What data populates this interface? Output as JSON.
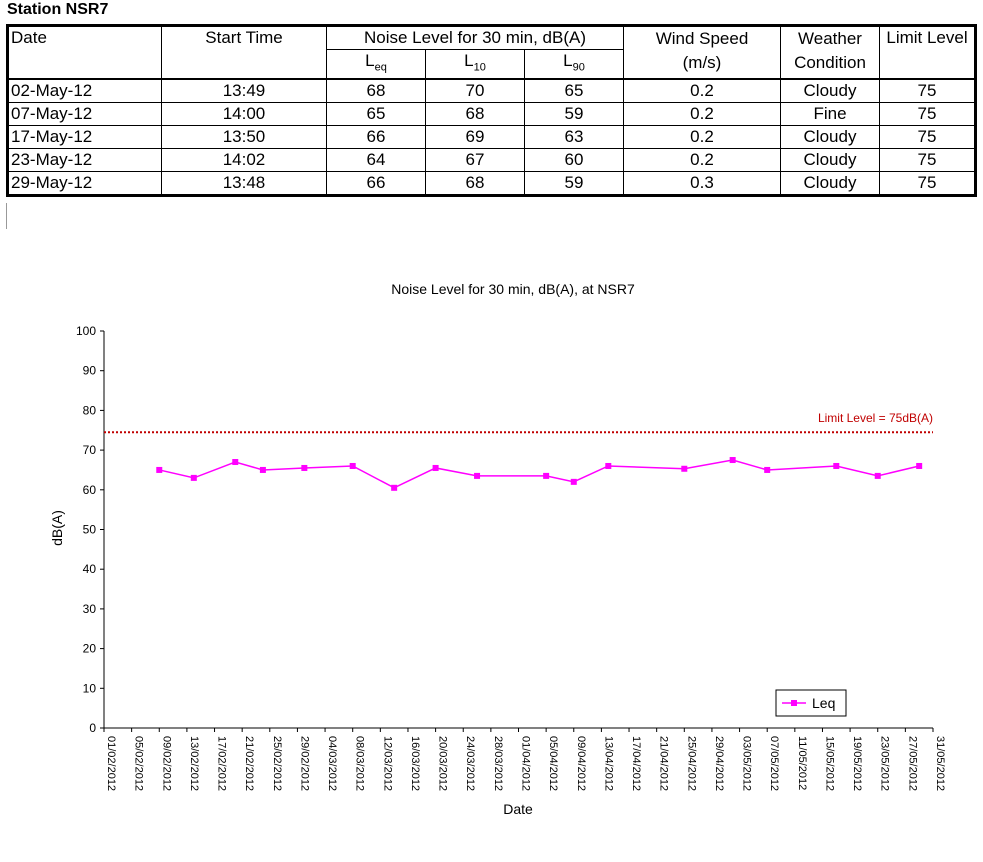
{
  "station_title": "Station NSR7",
  "table": {
    "headers": {
      "date": "Date",
      "start_time": "Start Time",
      "noise_group": "Noise Level for 30 min, dB(A)",
      "leq": {
        "base": "L",
        "sub": "eq"
      },
      "l10": {
        "base": "L",
        "sub": "10"
      },
      "l90": {
        "base": "L",
        "sub": "90"
      },
      "wind_speed": "Wind Speed",
      "wind_unit": "(m/s)",
      "weather": "Weather",
      "weather2": "Condition",
      "limit": "Limit Level"
    },
    "rows": [
      {
        "date": "02-May-12",
        "time": "13:49",
        "leq": "68",
        "l10": "70",
        "l90": "65",
        "wind": "0.2",
        "weather": "Cloudy",
        "limit": "75"
      },
      {
        "date": "07-May-12",
        "time": "14:00",
        "leq": "65",
        "l10": "68",
        "l90": "59",
        "wind": "0.2",
        "weather": "Fine",
        "limit": "75"
      },
      {
        "date": "17-May-12",
        "time": "13:50",
        "leq": "66",
        "l10": "69",
        "l90": "63",
        "wind": "0.2",
        "weather": "Cloudy",
        "limit": "75"
      },
      {
        "date": "23-May-12",
        "time": "14:02",
        "leq": "64",
        "l10": "67",
        "l90": "60",
        "wind": "0.2",
        "weather": "Cloudy",
        "limit": "75"
      },
      {
        "date": "29-May-12",
        "time": "13:48",
        "leq": "66",
        "l10": "68",
        "l90": "59",
        "wind": "0.3",
        "weather": "Cloudy",
        "limit": "75"
      }
    ]
  },
  "chart_data": {
    "type": "line",
    "title": "Noise Level for 30 min, dB(A), at NSR7",
    "xlabel": "Date",
    "ylabel": "dB(A)",
    "ylim": [
      0,
      100
    ],
    "yticks": [
      0,
      10,
      20,
      30,
      40,
      50,
      60,
      70,
      80,
      90,
      100
    ],
    "xlim": [
      "01/02/2012",
      "31/05/2012"
    ],
    "xticks": [
      "01/02/2012",
      "05/02/2012",
      "09/02/2012",
      "13/02/2012",
      "17/02/2012",
      "21/02/2012",
      "25/02/2012",
      "29/02/2012",
      "04/03/2012",
      "08/03/2012",
      "12/03/2012",
      "16/03/2012",
      "20/03/2012",
      "24/03/2012",
      "28/03/2012",
      "01/04/2012",
      "05/04/2012",
      "09/04/2012",
      "13/04/2012",
      "17/04/2012",
      "21/04/2012",
      "25/04/2012",
      "29/04/2012",
      "03/05/2012",
      "07/05/2012",
      "11/05/2012",
      "15/05/2012",
      "19/05/2012",
      "23/05/2012",
      "27/05/2012",
      "31/05/2012"
    ],
    "grid": false,
    "legend": "bottom-right",
    "series": [
      {
        "name": "Leq",
        "color": "#ff00ff",
        "x": [
          "09/02/2012",
          "14/02/2012",
          "20/02/2012",
          "24/02/2012",
          "01/03/2012",
          "08/03/2012",
          "14/03/2012",
          "20/03/2012",
          "26/03/2012",
          "05/04/2012",
          "09/04/2012",
          "14/04/2012",
          "25/04/2012",
          "02/05/2012",
          "07/05/2012",
          "17/05/2012",
          "23/05/2012",
          "29/05/2012"
        ],
        "y": [
          65,
          63,
          67,
          65,
          65.5,
          66,
          60.5,
          65.5,
          63.5,
          63.5,
          62,
          66,
          65.3,
          67.5,
          65,
          66,
          63.5,
          66
        ]
      }
    ],
    "limit_line": {
      "value": 74.5,
      "label": "Limit Level = 75dB(A)",
      "color": "#c00000"
    }
  }
}
